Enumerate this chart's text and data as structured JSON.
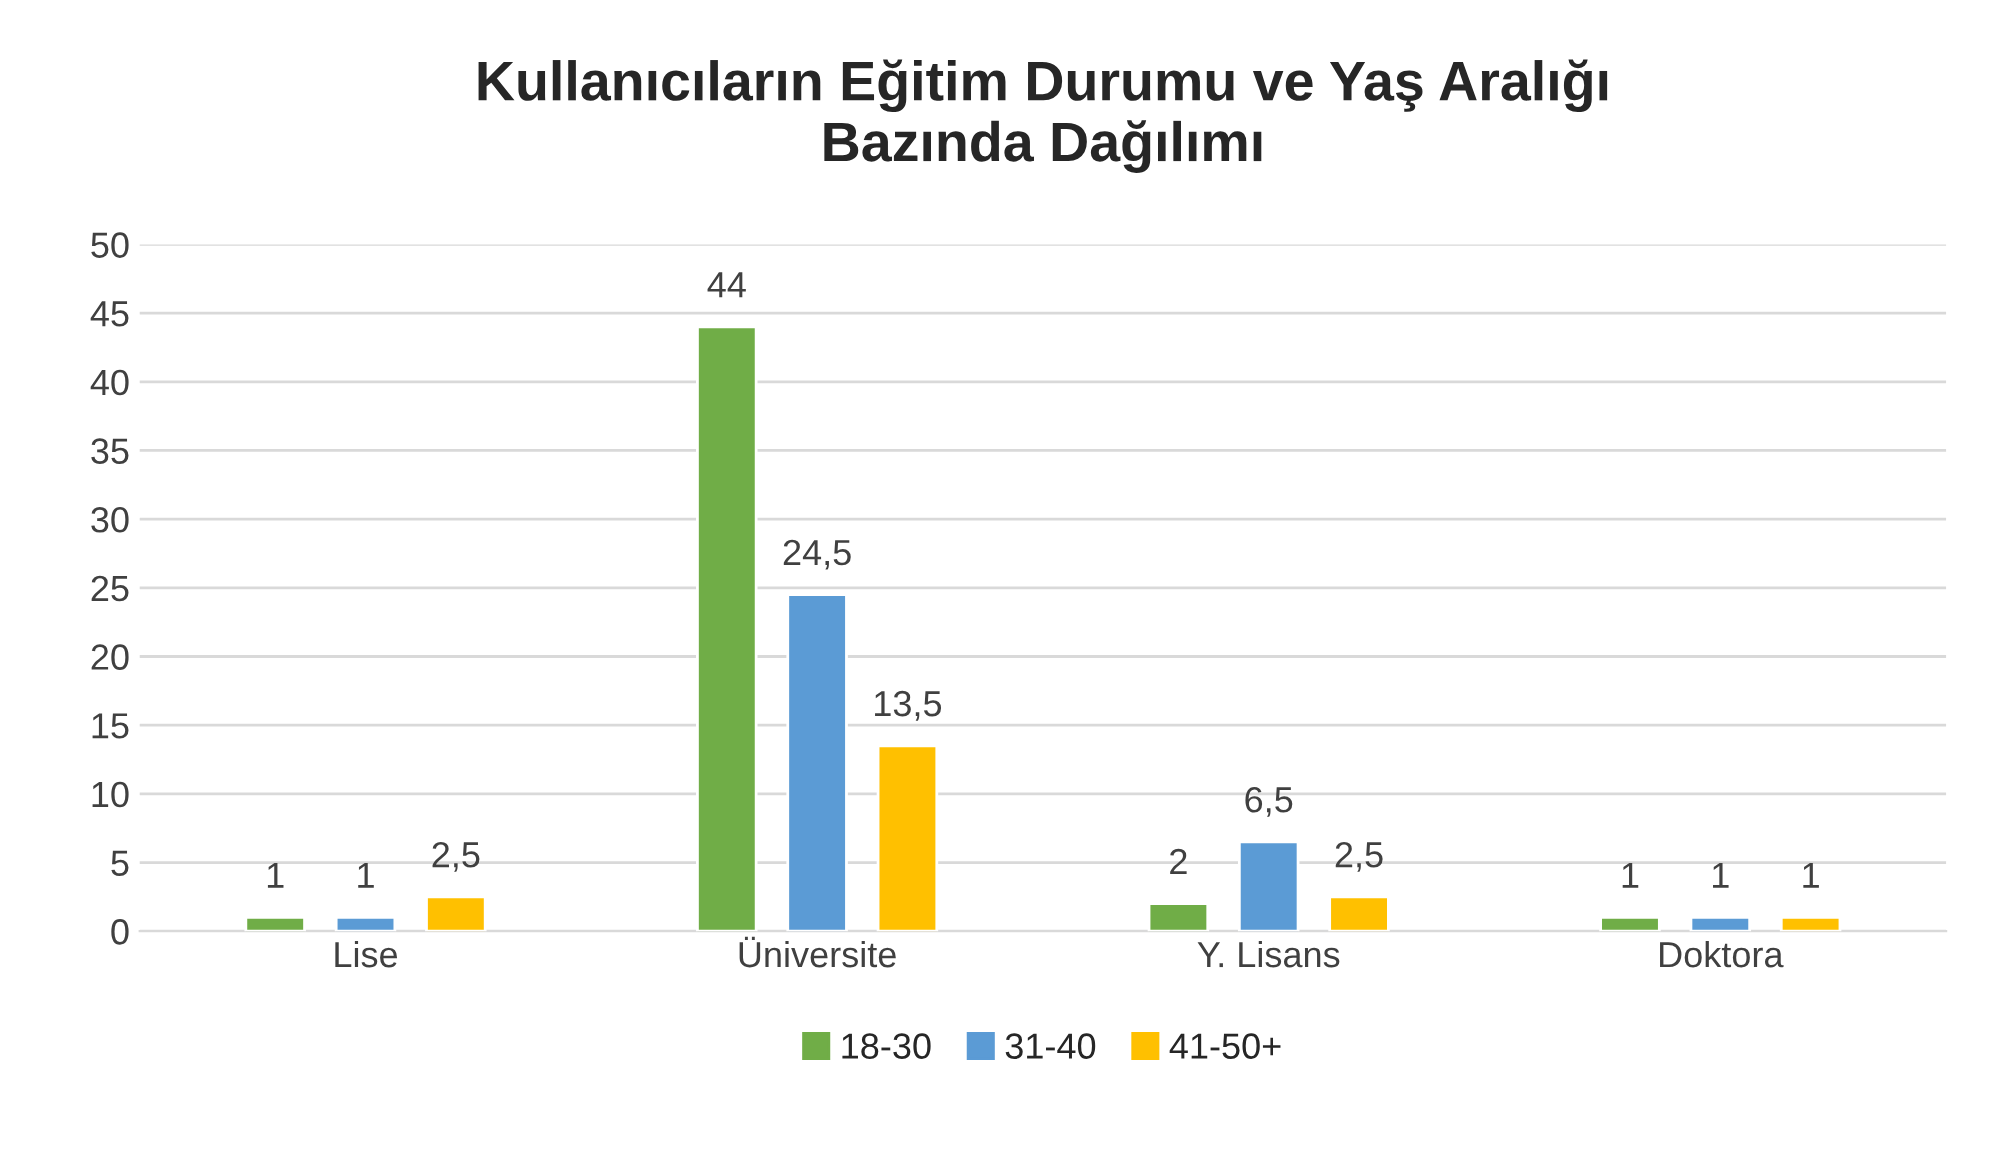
{
  "chart_data": {
    "type": "bar",
    "title": "Kullanıcıların Eğitim Durumu ve Yaş Aralığı\nBazında Dağılımı",
    "categories": [
      "Lise",
      "Üniversite",
      "Y. Lisans",
      "Doktora"
    ],
    "series": [
      {
        "name": "18-30",
        "color": "#70ad47",
        "values": [
          1,
          44,
          2,
          1
        ],
        "value_labels": [
          "1",
          "44",
          "2",
          "1"
        ]
      },
      {
        "name": "31-40",
        "color": "#5b9bd5",
        "values": [
          1,
          24.5,
          6.5,
          1
        ],
        "value_labels": [
          "1",
          "24,5",
          "6,5",
          "1"
        ]
      },
      {
        "name": "41-50+",
        "color": "#ffc000",
        "values": [
          2.5,
          13.5,
          2.5,
          1
        ],
        "value_labels": [
          "2,5",
          "13,5",
          "2,5",
          "1"
        ]
      }
    ],
    "ylim": [
      0,
      50
    ],
    "yticks": [
      0,
      5,
      10,
      15,
      20,
      25,
      30,
      35,
      40,
      45,
      50
    ],
    "grid": "y",
    "legend": "bottom"
  }
}
